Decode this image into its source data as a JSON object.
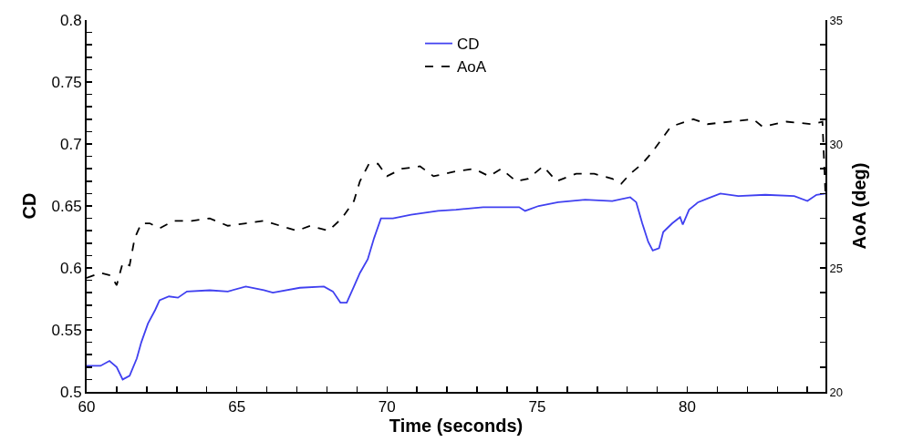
{
  "chart_data": {
    "type": "line",
    "xlabel": "Time (seconds)",
    "ylabel": "CD",
    "y2label": "AoA (deg)",
    "legend": "top",
    "grid": false,
    "xlim": [
      60,
      84.6
    ],
    "xticks": [
      60,
      {
        "value": 61,
        "label": null
      },
      {
        "value": 62,
        "label": null
      },
      {
        "value": 63,
        "label": null
      },
      {
        "value": 64,
        "label": null
      },
      65,
      {
        "value": 66,
        "label": null
      },
      {
        "value": 67,
        "label": null
      },
      {
        "value": 68,
        "label": null
      },
      {
        "value": 69,
        "label": null
      },
      70,
      {
        "value": 71,
        "label": null
      },
      {
        "value": 72,
        "label": null
      },
      {
        "value": 73,
        "label": null
      },
      {
        "value": 74,
        "label": null
      },
      75,
      {
        "value": 76,
        "label": null
      },
      {
        "value": 77,
        "label": null
      },
      {
        "value": 78,
        "label": null
      },
      {
        "value": 79,
        "label": null
      },
      80,
      {
        "value": 81,
        "label": null
      },
      {
        "value": 82,
        "label": null
      },
      {
        "value": 83,
        "label": null
      },
      {
        "value": 84,
        "label": null
      }
    ],
    "ylim": [
      0.5,
      0.8
    ],
    "yticks": [
      0.5,
      {
        "value": 0.51,
        "label": null
      },
      {
        "value": 0.52,
        "label": null
      },
      {
        "value": 0.53,
        "label": null
      },
      {
        "value": 0.54,
        "label": null
      },
      0.55,
      {
        "value": 0.56,
        "label": null
      },
      {
        "value": 0.57,
        "label": null
      },
      {
        "value": 0.58,
        "label": null
      },
      {
        "value": 0.59,
        "label": null
      },
      0.6,
      {
        "value": 0.61,
        "label": null
      },
      {
        "value": 0.62,
        "label": null
      },
      {
        "value": 0.63,
        "label": null
      },
      {
        "value": 0.64,
        "label": null
      },
      0.65,
      {
        "value": 0.66,
        "label": null
      },
      {
        "value": 0.67,
        "label": null
      },
      {
        "value": 0.68,
        "label": null
      },
      {
        "value": 0.69,
        "label": null
      },
      0.7,
      {
        "value": 0.71,
        "label": null
      },
      {
        "value": 0.72,
        "label": null
      },
      {
        "value": 0.73,
        "label": null
      },
      {
        "value": 0.74,
        "label": null
      },
      0.75,
      {
        "value": 0.76,
        "label": null
      },
      {
        "value": 0.77,
        "label": null
      },
      {
        "value": 0.78,
        "label": null
      },
      {
        "value": 0.79,
        "label": null
      },
      0.8
    ],
    "y2lim": [
      20,
      35
    ],
    "y2ticks": [
      20,
      {
        "value": 21,
        "label": null
      },
      {
        "value": 22,
        "label": null
      },
      {
        "value": 23,
        "label": null
      },
      {
        "value": 24,
        "label": null
      },
      25,
      {
        "value": 26,
        "label": null
      },
      {
        "value": 27,
        "label": null
      },
      {
        "value": 28,
        "label": null
      },
      {
        "value": 29,
        "label": null
      },
      30,
      {
        "value": 31,
        "label": null
      },
      {
        "value": 32,
        "label": null
      },
      {
        "value": 33,
        "label": null
      },
      {
        "value": 34,
        "label": null
      },
      35
    ],
    "series": [
      {
        "name": "CD",
        "color": "#4040f0",
        "line_style": "solid",
        "x": [
          60,
          60.46,
          60.76,
          61.0,
          61.2,
          61.43,
          61.67,
          61.82,
          62.04,
          62.28,
          62.43,
          62.74,
          63.04,
          63.34,
          64.1,
          64.7,
          65.3,
          65.9,
          66.2,
          67.1,
          67.9,
          68.2,
          68.45,
          68.66,
          68.9,
          69.1,
          69.36,
          69.57,
          69.8,
          70.2,
          70.8,
          71.7,
          72.3,
          73.2,
          74.4,
          74.6,
          75.05,
          75.7,
          76.6,
          77.5,
          78.1,
          78.3,
          78.5,
          78.7,
          78.85,
          79.06,
          79.2,
          79.5,
          79.76,
          79.85,
          80.06,
          80.36,
          80.67,
          81.1,
          81.7,
          82.6,
          83.56,
          84.0,
          84.3,
          84.6
        ],
        "values": [
          0.521,
          0.521,
          0.525,
          0.52,
          0.51,
          0.513,
          0.527,
          0.54,
          0.555,
          0.566,
          0.574,
          0.577,
          0.576,
          0.581,
          0.582,
          0.581,
          0.585,
          0.582,
          0.58,
          0.584,
          0.585,
          0.581,
          0.572,
          0.572,
          0.585,
          0.596,
          0.607,
          0.624,
          0.64,
          0.64,
          0.643,
          0.646,
          0.647,
          0.649,
          0.649,
          0.646,
          0.65,
          0.653,
          0.655,
          0.654,
          0.657,
          0.653,
          0.636,
          0.621,
          0.614,
          0.616,
          0.629,
          0.636,
          0.641,
          0.635,
          0.647,
          0.653,
          0.656,
          0.66,
          0.658,
          0.659,
          0.658,
          0.654,
          0.659,
          0.66
        ]
      },
      {
        "name": "AoA",
        "color": "#000000",
        "line_style": "dashed",
        "axis": "y2",
        "x": [
          60,
          60.46,
          60.8,
          61.0,
          61.2,
          61.43,
          61.6,
          61.82,
          62.1,
          62.43,
          62.9,
          63.5,
          64.1,
          64.7,
          65.3,
          65.9,
          67.0,
          67.45,
          68.05,
          68.5,
          68.9,
          69.1,
          69.4,
          69.7,
          70.0,
          70.5,
          71.1,
          71.55,
          72.3,
          72.9,
          73.4,
          73.8,
          74.3,
          74.7,
          75.2,
          75.65,
          76.3,
          76.9,
          77.5,
          77.8,
          78.1,
          78.5,
          78.85,
          79.45,
          80.2,
          80.67,
          81.4,
          82.2,
          82.5,
          83.3,
          84.15,
          84.5,
          84.6
        ],
        "values": [
          24.6,
          24.8,
          24.7,
          24.3,
          25.2,
          25.1,
          26.2,
          26.8,
          26.8,
          26.6,
          26.9,
          26.9,
          27.0,
          26.7,
          26.8,
          26.9,
          26.5,
          26.7,
          26.5,
          27.0,
          27.7,
          28.5,
          29.2,
          29.2,
          28.7,
          29.0,
          29.1,
          28.7,
          28.9,
          29.0,
          28.7,
          29.0,
          28.5,
          28.6,
          29.1,
          28.5,
          28.8,
          28.8,
          28.6,
          28.4,
          28.8,
          29.2,
          29.7,
          30.7,
          31.0,
          30.8,
          30.9,
          31.0,
          30.7,
          30.9,
          30.8,
          30.9,
          28.0
        ]
      }
    ]
  }
}
